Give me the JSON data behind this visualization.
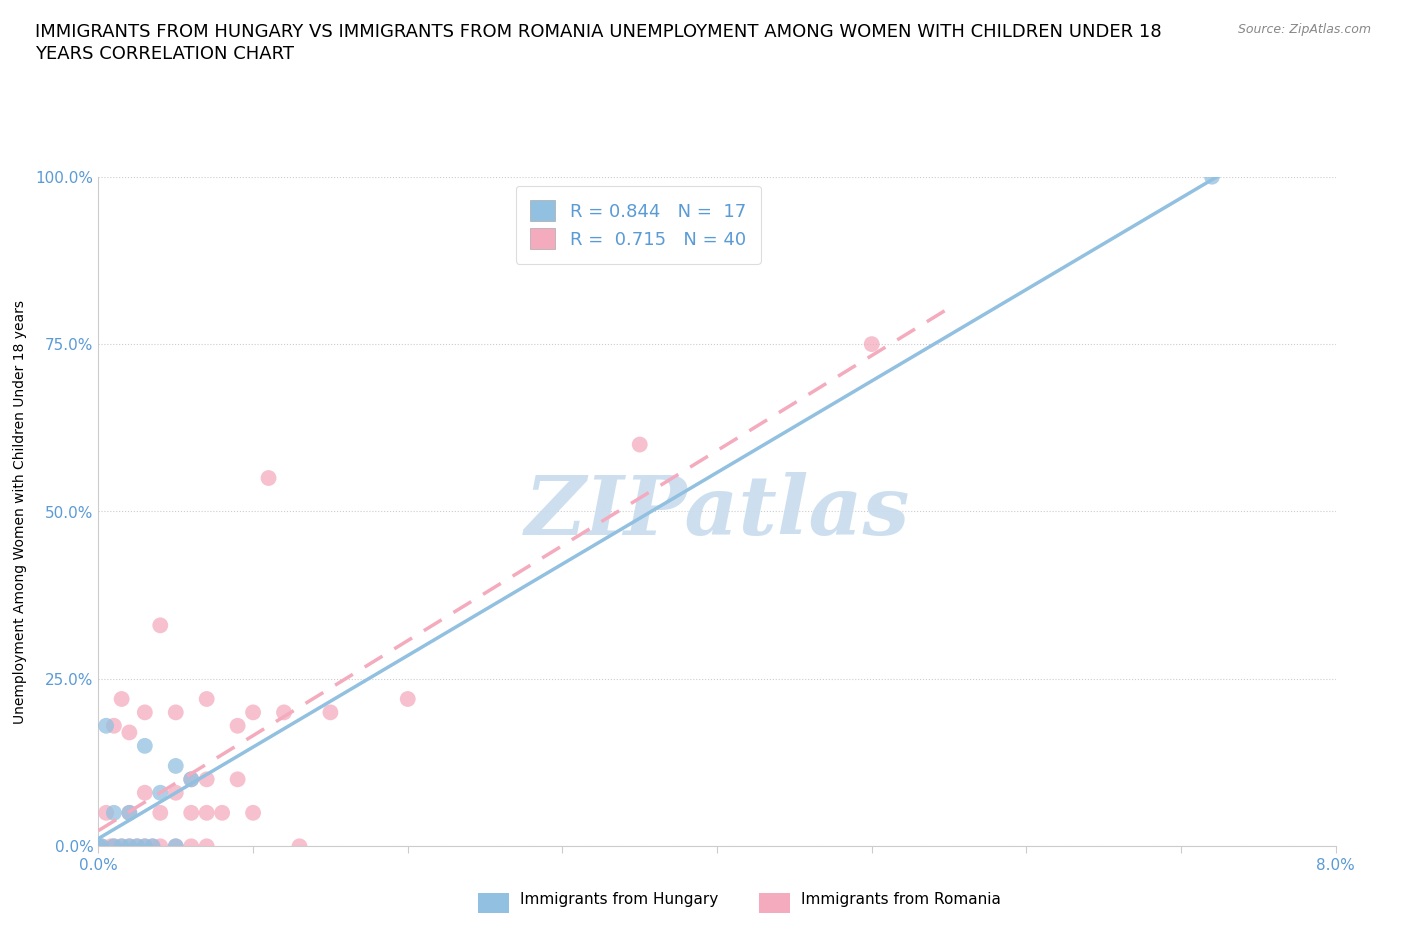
{
  "title_line1": "IMMIGRANTS FROM HUNGARY VS IMMIGRANTS FROM ROMANIA UNEMPLOYMENT AMONG WOMEN WITH CHILDREN UNDER 18",
  "title_line2": "YEARS CORRELATION CHART",
  "source_text": "Source: ZipAtlas.com",
  "ylabel": "Unemployment Among Women with Children Under 18 years",
  "xlim": [
    0.0,
    0.08
  ],
  "ylim": [
    0.0,
    1.0
  ],
  "xticks": [
    0.0,
    0.01,
    0.02,
    0.03,
    0.04,
    0.05,
    0.06,
    0.07,
    0.08
  ],
  "xticklabels": [
    "0.0%",
    "",
    "",
    "",
    "",
    "",
    "",
    "",
    "8.0%"
  ],
  "yticks": [
    0.0,
    0.25,
    0.5,
    0.75,
    1.0
  ],
  "yticklabels": [
    "0.0%",
    "25.0%",
    "50.0%",
    "75.0%",
    "100.0%"
  ],
  "hungary_color": "#92C0E0",
  "romania_color": "#F5ABBE",
  "hungary_R": 0.844,
  "hungary_N": 17,
  "romania_R": 0.715,
  "romania_N": 40,
  "legend_text_color": "#5B9BD5",
  "watermark_text": "ZIPatlas",
  "watermark_color": "#C8DCEE",
  "hungary_x": [
    0.0002,
    0.0005,
    0.001,
    0.001,
    0.0015,
    0.002,
    0.002,
    0.0025,
    0.003,
    0.003,
    0.0035,
    0.004,
    0.005,
    0.005,
    0.006,
    0.072,
    0.0
  ],
  "hungary_y": [
    0.0,
    0.18,
    0.0,
    0.05,
    0.0,
    0.0,
    0.05,
    0.0,
    0.0,
    0.15,
    0.0,
    0.08,
    0.0,
    0.12,
    0.1,
    1.0,
    0.0
  ],
  "romania_x": [
    0.0002,
    0.0005,
    0.0008,
    0.001,
    0.001,
    0.0015,
    0.0015,
    0.002,
    0.002,
    0.002,
    0.0025,
    0.003,
    0.003,
    0.003,
    0.0035,
    0.004,
    0.004,
    0.004,
    0.005,
    0.005,
    0.005,
    0.006,
    0.006,
    0.006,
    0.007,
    0.007,
    0.007,
    0.007,
    0.008,
    0.009,
    0.009,
    0.01,
    0.01,
    0.011,
    0.012,
    0.013,
    0.015,
    0.02,
    0.035,
    0.05
  ],
  "romania_y": [
    0.0,
    0.05,
    0.0,
    0.0,
    0.18,
    0.0,
    0.22,
    0.0,
    0.05,
    0.17,
    0.0,
    0.0,
    0.08,
    0.2,
    0.0,
    0.0,
    0.05,
    0.33,
    0.0,
    0.08,
    0.2,
    0.0,
    0.05,
    0.1,
    0.0,
    0.05,
    0.1,
    0.22,
    0.05,
    0.1,
    0.18,
    0.05,
    0.2,
    0.55,
    0.2,
    0.0,
    0.2,
    0.22,
    0.6,
    0.75
  ],
  "background_color": "#FFFFFF",
  "grid_color": "#CCCCCC",
  "axis_color": "#CCCCCC",
  "title_fontsize": 13,
  "label_fontsize": 10,
  "tick_fontsize": 11,
  "marker_size": 100,
  "marker_alpha": 0.75,
  "line_width": 2.5
}
